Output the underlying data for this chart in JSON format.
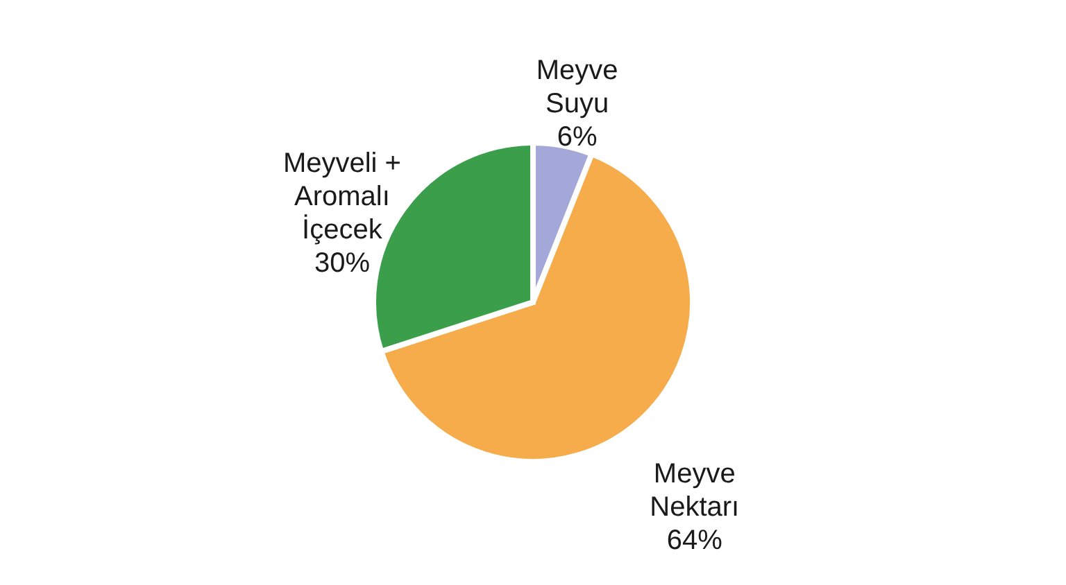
{
  "chart_data": {
    "type": "pie",
    "categories": [
      "Meyve\nSuyu",
      "Meyve\nNektarı",
      "Meyveli +\nAromalı\nİçecek"
    ],
    "values": [
      6,
      64,
      30
    ],
    "value_labels": [
      "6%",
      "64%",
      "30%"
    ],
    "colors": [
      "#a3a8d8",
      "#f6ac4a",
      "#3a9e4a"
    ]
  }
}
